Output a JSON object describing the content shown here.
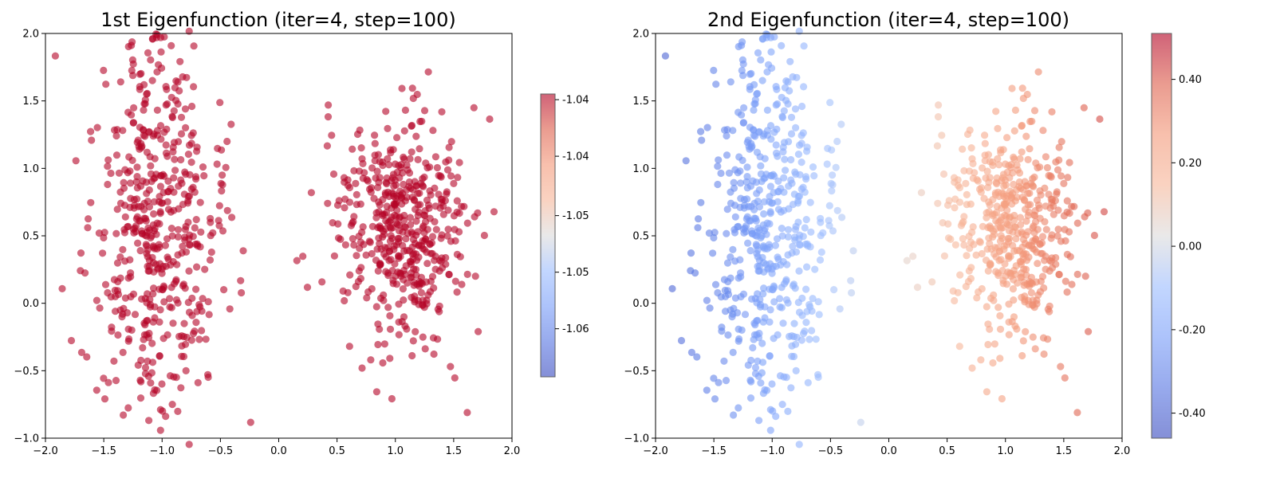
{
  "chart_data": [
    {
      "type": "scatter",
      "title": "1st Eigenfunction (iter=4, step=100)",
      "xlabel": "",
      "ylabel": "",
      "xlim": [
        -2.0,
        2.0
      ],
      "ylim": [
        -1.0,
        2.0
      ],
      "xticks": [
        "−2.0",
        "−1.5",
        "−1.0",
        "−0.5",
        "0.0",
        "0.5",
        "1.0",
        "1.5",
        "2.0"
      ],
      "yticks": [
        "−1.0",
        "−0.5",
        "0.0",
        "0.5",
        "1.0",
        "1.5",
        "2.0"
      ],
      "grid": false,
      "colormap": "coolwarm",
      "point_color": "#b40426",
      "point_alpha": 0.6,
      "colorbar": {
        "ticks": [
          "-1.04",
          "-1.04",
          "-1.05",
          "-1.05",
          "-1.06"
        ],
        "tick_fracs": [
          0.02,
          0.22,
          0.43,
          0.63,
          0.83
        ]
      },
      "points_description": "two moon-shaped clusters, all points colored at the top of the colormap",
      "color_by": "constant",
      "clusters": [
        {
          "cx": -1.05,
          "cy": 0.55,
          "sx": 0.28,
          "sy": 0.75,
          "n": 520
        },
        {
          "cx": 1.05,
          "cy": 0.55,
          "sx": 0.28,
          "sy": 0.45,
          "n": 480
        }
      ]
    },
    {
      "type": "scatter",
      "title": "2nd Eigenfunction (iter=4, step=100)",
      "xlabel": "",
      "ylabel": "",
      "xlim": [
        -2.0,
        2.0
      ],
      "ylim": [
        -1.0,
        2.0
      ],
      "xticks": [
        "−2.0",
        "−1.5",
        "−1.0",
        "−0.5",
        "0.0",
        "0.5",
        "1.0",
        "1.5",
        "2.0"
      ],
      "yticks": [
        "−1.0",
        "−0.5",
        "0.0",
        "0.5",
        "1.0",
        "1.5",
        "2.0"
      ],
      "grid": false,
      "colormap": "coolwarm",
      "point_alpha": 0.6,
      "colorbar": {
        "ticks": [
          "0.40",
          "0.20",
          "0.00",
          "-0.20",
          "-0.40"
        ],
        "range": [
          -0.46,
          0.51
        ]
      },
      "color_by": "x",
      "clusters": [
        {
          "cx": -1.05,
          "cy": 0.55,
          "sx": 0.28,
          "sy": 0.75,
          "n": 520
        },
        {
          "cx": 1.05,
          "cy": 0.55,
          "sx": 0.28,
          "sy": 0.45,
          "n": 480
        }
      ]
    }
  ]
}
